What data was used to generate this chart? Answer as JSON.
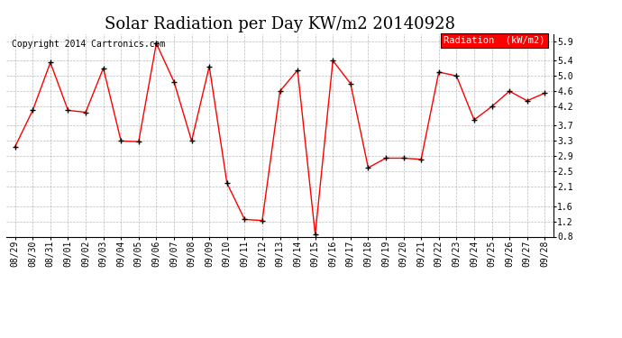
{
  "title": "Solar Radiation per Day KW/m2 20140928",
  "copyright": "Copyright 2014 Cartronics.com",
  "legend_label": "Radiation  (kW/m2)",
  "dates": [
    "08/29",
    "08/30",
    "08/31",
    "09/01",
    "09/02",
    "09/03",
    "09/04",
    "09/05",
    "09/06",
    "09/07",
    "09/08",
    "09/09",
    "09/10",
    "09/11",
    "09/12",
    "09/13",
    "09/14",
    "09/15",
    "09/16",
    "09/17",
    "09/18",
    "09/19",
    "09/20",
    "09/21",
    "09/22",
    "09/23",
    "09/24",
    "09/25",
    "09/26",
    "09/27",
    "09/28"
  ],
  "values": [
    3.15,
    4.1,
    5.35,
    4.1,
    4.05,
    5.2,
    3.3,
    3.28,
    5.85,
    4.85,
    3.3,
    5.25,
    2.2,
    1.25,
    1.22,
    4.6,
    5.15,
    0.85,
    5.4,
    4.8,
    2.6,
    2.85,
    2.85,
    2.82,
    5.1,
    5.0,
    3.85,
    4.2,
    4.6,
    4.35,
    4.55
  ],
  "line_color": "red",
  "marker_color": "black",
  "background_color": "#ffffff",
  "grid_color": "#aaaaaa",
  "ylim": [
    0.8,
    6.1
  ],
  "yticks": [
    0.8,
    1.2,
    1.6,
    2.1,
    2.5,
    2.9,
    3.3,
    3.7,
    4.2,
    4.6,
    5.0,
    5.4,
    5.9
  ],
  "title_fontsize": 13,
  "copyright_fontsize": 7,
  "tick_fontsize": 7,
  "legend_bg": "red",
  "legend_text_color": "white"
}
